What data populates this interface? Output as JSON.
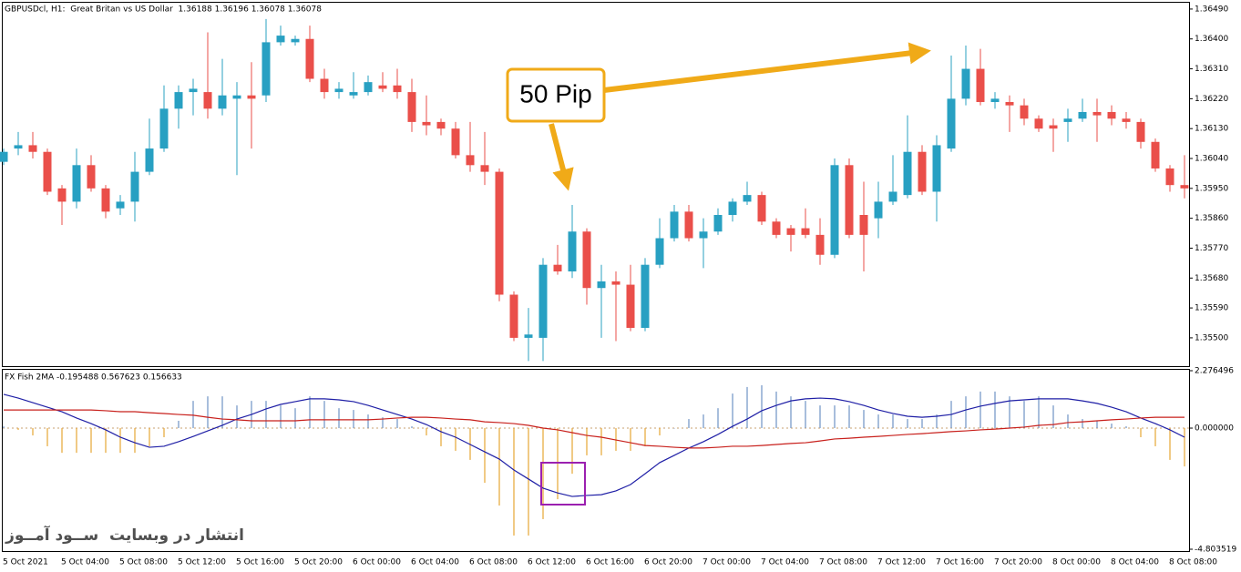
{
  "chart_data": [
    {
      "type": "candlestick",
      "title": "GBPUSDcl, H1:  Great Britan vs US Dollar  1.36188 1.36196 1.36078 1.36078",
      "annotation": "50 Pip",
      "up_color": "#28a0c2",
      "down_color": "#ea4f4a",
      "categories": [
        "5 Oct 2021",
        null,
        null,
        null,
        "5 Oct 04:00",
        null,
        null,
        null,
        "5 Oct 08:00",
        null,
        null,
        null,
        "5 Oct 12:00",
        null,
        null,
        null,
        "5 Oct 16:00",
        null,
        null,
        null,
        "5 Oct 20:00",
        null,
        null,
        null,
        "6 Oct 00:00",
        null,
        null,
        null,
        "6 Oct 04:00",
        null,
        null,
        null,
        "6 Oct 08:00",
        null,
        null,
        null,
        "6 Oct 12:00",
        null,
        null,
        null,
        "6 Oct 16:00",
        null,
        null,
        null,
        "6 Oct 20:00",
        null,
        null,
        null,
        "7 Oct 00:00",
        null,
        null,
        null,
        "7 Oct 04:00",
        null,
        null,
        null,
        "7 Oct 08:00",
        null,
        null,
        null,
        "7 Oct 12:00",
        null,
        null,
        null,
        "7 Oct 16:00",
        null,
        null,
        null,
        "7 Oct 20:00",
        null,
        null,
        null,
        "8 Oct 00:00",
        null,
        null,
        null,
        "8 Oct 04:00",
        null,
        null,
        null,
        "8 Oct 08:00",
        null
      ],
      "open": [
        1.3603,
        1.3607,
        1.3608,
        1.3606,
        1.3595,
        1.3591,
        1.3602,
        1.3595,
        1.3589,
        1.3591,
        1.36,
        1.3607,
        1.3619,
        1.3624,
        1.3624,
        1.3619,
        1.3622,
        1.3623,
        1.3623,
        1.3639,
        1.3639,
        1.364,
        1.3628,
        1.3624,
        1.3623,
        1.3624,
        1.3626,
        1.3626,
        1.3624,
        1.3615,
        1.3615,
        1.3613,
        1.3605,
        1.3602,
        1.36,
        1.3563,
        1.355,
        1.355,
        1.3572,
        1.357,
        1.3582,
        1.3565,
        1.3567,
        1.3566,
        1.3553,
        1.3572,
        1.358,
        1.3588,
        1.358,
        1.3582,
        1.3587,
        1.3591,
        1.3593,
        1.3585,
        1.3583,
        1.3583,
        1.3581,
        1.3575,
        1.3602,
        1.3587,
        1.3586,
        1.3591,
        1.3593,
        1.3606,
        1.3594,
        1.3607,
        1.3622,
        1.3631,
        1.3621,
        1.3621,
        1.362,
        1.3616,
        1.3614,
        1.3615,
        1.3616,
        1.3618,
        1.3618,
        1.3616,
        1.3615,
        1.3609,
        1.3601,
        1.3596
      ],
      "high": [
        1.3607,
        1.3612,
        1.3612,
        1.3607,
        1.3596,
        1.3607,
        1.3605,
        1.3596,
        1.3593,
        1.3606,
        1.3616,
        1.3626,
        1.3626,
        1.3628,
        1.3642,
        1.3634,
        1.3627,
        1.3633,
        1.3646,
        1.3644,
        1.3641,
        1.3644,
        1.3631,
        1.3627,
        1.363,
        1.3629,
        1.363,
        1.3631,
        1.3628,
        1.3623,
        1.3616,
        1.3615,
        1.3615,
        1.3612,
        1.3601,
        1.3564,
        1.3559,
        1.3574,
        1.3578,
        1.359,
        1.3583,
        1.3572,
        1.357,
        1.3572,
        1.3574,
        1.3586,
        1.359,
        1.359,
        1.3586,
        1.3589,
        1.3592,
        1.3597,
        1.3594,
        1.3586,
        1.3584,
        1.3589,
        1.3586,
        1.3604,
        1.3604,
        1.3597,
        1.3597,
        1.3605,
        1.3617,
        1.3608,
        1.3611,
        1.3635,
        1.3638,
        1.3637,
        1.3624,
        1.3623,
        1.3622,
        1.3617,
        1.3616,
        1.3619,
        1.3622,
        1.3622,
        1.362,
        1.3618,
        1.3616,
        1.361,
        1.3602,
        1.3605
      ],
      "low": [
        1.3602,
        1.3605,
        1.3604,
        1.3593,
        1.3584,
        1.3589,
        1.3594,
        1.3586,
        1.3587,
        1.3585,
        1.3599,
        1.3606,
        1.3613,
        1.3617,
        1.3616,
        1.3617,
        1.3599,
        1.3607,
        1.3621,
        1.3638,
        1.3638,
        1.3627,
        1.3622,
        1.3622,
        1.3622,
        1.3623,
        1.3624,
        1.3622,
        1.3612,
        1.3611,
        1.3611,
        1.3604,
        1.36,
        1.3596,
        1.3561,
        1.3549,
        1.3543,
        1.3543,
        1.3569,
        1.3568,
        1.356,
        1.355,
        1.3549,
        1.3552,
        1.3552,
        1.3571,
        1.3579,
        1.3579,
        1.3571,
        1.3581,
        1.3585,
        1.359,
        1.3584,
        1.358,
        1.3576,
        1.358,
        1.3572,
        1.3574,
        1.358,
        1.357,
        1.358,
        1.359,
        1.3592,
        1.3593,
        1.3585,
        1.3606,
        1.362,
        1.362,
        1.3619,
        1.3612,
        1.3614,
        1.3612,
        1.3606,
        1.3609,
        1.3615,
        1.3609,
        1.3614,
        1.3613,
        1.3607,
        1.36,
        1.3594,
        1.3592
      ],
      "close": [
        1.3606,
        1.3608,
        1.3606,
        1.3594,
        1.3591,
        1.3602,
        1.3595,
        1.3588,
        1.3591,
        1.36,
        1.3607,
        1.3619,
        1.3624,
        1.3625,
        1.3619,
        1.3623,
        1.3623,
        1.3622,
        1.3639,
        1.3641,
        1.364,
        1.3628,
        1.3624,
        1.3625,
        1.3624,
        1.3627,
        1.3625,
        1.3624,
        1.3615,
        1.3614,
        1.3613,
        1.3605,
        1.3602,
        1.36,
        1.3563,
        1.355,
        1.3551,
        1.3572,
        1.357,
        1.3582,
        1.3565,
        1.3567,
        1.3566,
        1.3553,
        1.3572,
        1.358,
        1.3588,
        1.358,
        1.3582,
        1.3587,
        1.3591,
        1.3593,
        1.3585,
        1.3581,
        1.3581,
        1.3581,
        1.3575,
        1.3602,
        1.3581,
        1.3581,
        1.3591,
        1.3594,
        1.3606,
        1.3594,
        1.3608,
        1.3622,
        1.3631,
        1.3621,
        1.3622,
        1.362,
        1.3616,
        1.3613,
        1.3613,
        1.3616,
        1.3618,
        1.3617,
        1.3616,
        1.3615,
        1.3609,
        1.3601,
        1.3596,
        1.3595
      ],
      "ylim": [
        1.35412,
        1.36509
      ],
      "yticks": [
        {
          "value": 1.3649,
          "label": "1.36490"
        },
        {
          "value": 1.364,
          "label": "1.36400"
        },
        {
          "value": 1.3631,
          "label": "1.36310"
        },
        {
          "value": 1.3622,
          "label": "1.36220"
        },
        {
          "value": 1.3613,
          "label": "1.36130"
        },
        {
          "value": 1.3604,
          "label": "1.36040"
        },
        {
          "value": 1.3595,
          "label": "1.35950"
        },
        {
          "value": 1.3586,
          "label": "1.35860"
        },
        {
          "value": 1.3577,
          "label": "1.35770"
        },
        {
          "value": 1.3568,
          "label": "1.35680"
        },
        {
          "value": 1.3559,
          "label": "1.35590"
        },
        {
          "value": 1.355,
          "label": "1.35500"
        }
      ]
    },
    {
      "type": "indicator",
      "title": "FX Fish 2MA -0.195488 0.567623 0.156633",
      "annotation": "انتشار در وبسایت  ســود آمــوز",
      "level_lines": true,
      "series": [
        {
          "kind": "histogram",
          "color": "#6f93c4",
          "negative_color": "#e6a634",
          "values": [
            0.07,
            -0.07,
            -0.29,
            -0.72,
            -0.98,
            -0.98,
            -0.98,
            -0.98,
            -0.98,
            -0.98,
            -0.72,
            -0.36,
            0.29,
            1.08,
            1.26,
            1.26,
            0.9,
            1.08,
            1.08,
            0.9,
            0.79,
            1.26,
            1.08,
            0.79,
            0.72,
            0.54,
            0.43,
            0.36,
            0.07,
            -0.29,
            -0.72,
            -0.9,
            -1.26,
            -2.17,
            -3.07,
            -4.26,
            -4.26,
            -3.61,
            -2.82,
            -1.81,
            -1.08,
            -1.08,
            -0.9,
            -0.9,
            -0.72,
            -0.29,
            0,
            0.36,
            0.54,
            0.79,
            1.37,
            1.63,
            1.7,
            1.45,
            1.26,
            1.08,
            0.9,
            0.9,
            0.9,
            0.72,
            0.54,
            0.54,
            0.36,
            0.36,
            0.54,
            1.08,
            1.26,
            1.45,
            1.45,
            1.26,
            1.08,
            1.26,
            0.9,
            0.54,
            0.36,
            0.29,
            0.18,
            0.07,
            -0.36,
            -0.72,
            -1.26,
            -1.52
          ]
        },
        {
          "kind": "line",
          "color": "#1f1fa6",
          "values": [
            1.34,
            1.19,
            1.01,
            0.83,
            0.65,
            0.4,
            0.18,
            -0.07,
            -0.36,
            -0.58,
            -0.76,
            -0.72,
            -0.54,
            -0.33,
            -0.11,
            0.11,
            0.36,
            0.54,
            0.76,
            0.94,
            1.05,
            1.16,
            1.16,
            1.12,
            1.05,
            0.9,
            0.72,
            0.54,
            0.36,
            0.14,
            -0.14,
            -0.36,
            -0.65,
            -0.94,
            -1.23,
            -1.66,
            -2.02,
            -2.38,
            -2.57,
            -2.71,
            -2.67,
            -2.64,
            -2.49,
            -2.24,
            -1.81,
            -1.37,
            -1.08,
            -0.79,
            -0.54,
            -0.25,
            0.07,
            0.36,
            0.69,
            0.9,
            1.08,
            1.16,
            1.19,
            1.16,
            1.05,
            0.9,
            0.72,
            0.58,
            0.47,
            0.43,
            0.47,
            0.54,
            0.72,
            0.87,
            0.98,
            1.08,
            1.12,
            1.16,
            1.16,
            1.16,
            1.08,
            0.98,
            0.83,
            0.65,
            0.4,
            0.18,
            -0.07,
            -0.36
          ]
        },
        {
          "kind": "line",
          "color": "#c8201c",
          "values": [
            0.72,
            0.72,
            0.72,
            0.72,
            0.72,
            0.72,
            0.72,
            0.69,
            0.65,
            0.65,
            0.61,
            0.58,
            0.54,
            0.51,
            0.43,
            0.36,
            0.33,
            0.29,
            0.29,
            0.29,
            0.29,
            0.33,
            0.33,
            0.33,
            0.33,
            0.33,
            0.36,
            0.4,
            0.43,
            0.43,
            0.4,
            0.36,
            0.33,
            0.25,
            0.22,
            0.18,
            0.11,
            0,
            -0.07,
            -0.18,
            -0.29,
            -0.36,
            -0.47,
            -0.58,
            -0.69,
            -0.72,
            -0.76,
            -0.79,
            -0.79,
            -0.76,
            -0.72,
            -0.72,
            -0.69,
            -0.65,
            -0.61,
            -0.58,
            -0.51,
            -0.43,
            -0.4,
            -0.36,
            -0.33,
            -0.29,
            -0.25,
            -0.22,
            -0.18,
            -0.14,
            -0.11,
            -0.07,
            -0.04,
            0,
            0.04,
            0.11,
            0.14,
            0.22,
            0.25,
            0.29,
            0.33,
            0.36,
            0.4,
            0.43,
            0.43,
            0.43
          ]
        }
      ],
      "ylim": [
        -4.803519,
        2.276496
      ],
      "yticks": [
        2.276496,
        {
          "value": 0,
          "label": "0.000000"
        },
        -4.803519
      ]
    }
  ]
}
